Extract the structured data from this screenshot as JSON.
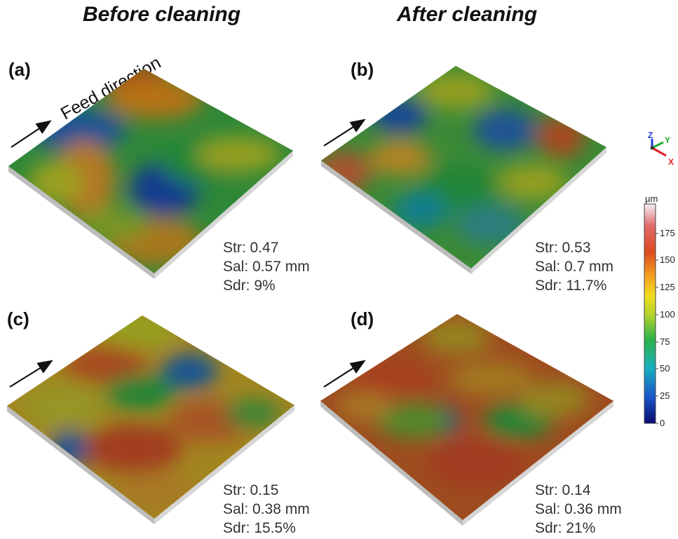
{
  "columns": {
    "before": "Before cleaning",
    "after": "After cleaning"
  },
  "feed_direction_label": "Feed direction",
  "panels": [
    {
      "label": "(a)",
      "str": "Str: 0.47",
      "sal": "Sal: 0.57 mm",
      "sdr": "Sdr: 9%"
    },
    {
      "label": "(b)",
      "str": "Str: 0.53",
      "sal": "Sal: 0.7 mm",
      "sdr": "Sdr: 11.7%"
    },
    {
      "label": "(c)",
      "str": "Str: 0.15",
      "sal": "Sal: 0.38 mm",
      "sdr": "Sdr: 15.5%"
    },
    {
      "label": "(d)",
      "str": "Str: 0.14",
      "sal": "Sal: 0.36 mm",
      "sdr": "Sdr: 21%"
    }
  ],
  "colorbar": {
    "unit": "µm",
    "ticks": [
      "175",
      "150",
      "125",
      "100",
      "75",
      "50",
      "25",
      "0"
    ],
    "colors": [
      "#0a0a6e",
      "#1a55c8",
      "#18b0c0",
      "#2ab24a",
      "#b8d42a",
      "#f2de1e",
      "#f29a1e",
      "#dd4a20",
      "#e06a6a",
      "#f5f0f5"
    ]
  },
  "axes": {
    "x": "X",
    "y": "Y",
    "z": "Z"
  }
}
